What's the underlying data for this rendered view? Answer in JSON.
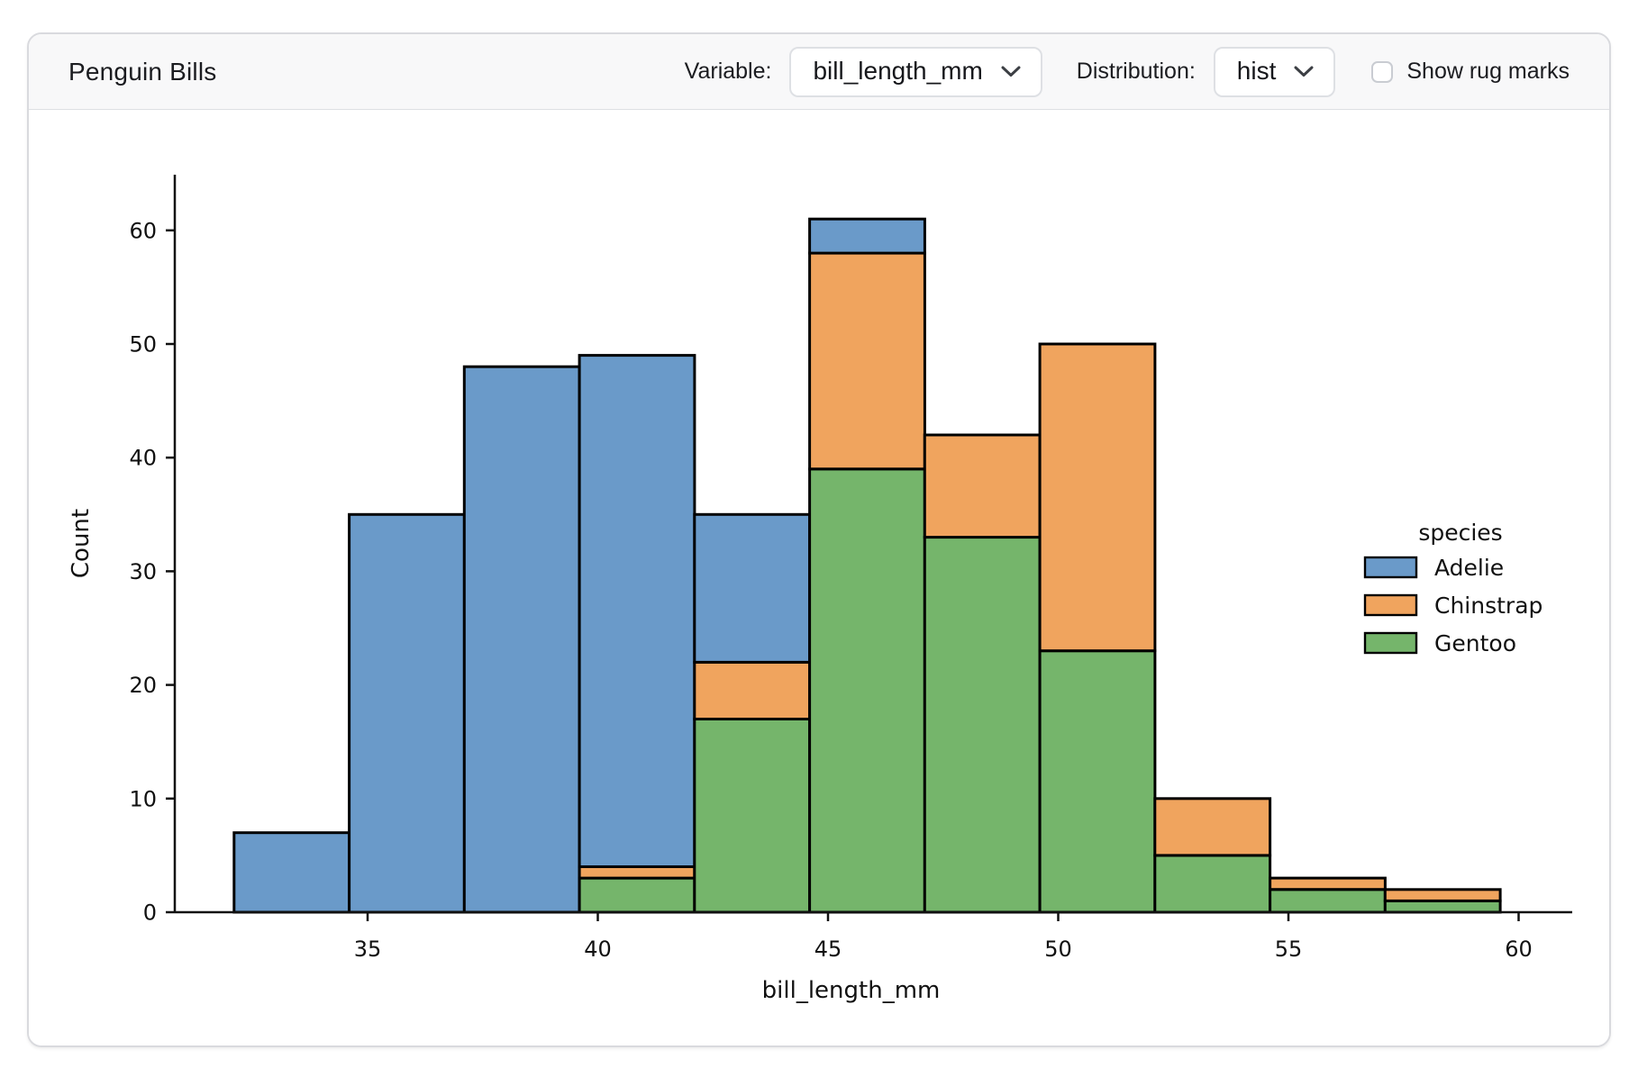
{
  "header": {
    "title": "Penguin Bills",
    "variable_label": "Variable:",
    "variable_value": "bill_length_mm",
    "variable_icon": "chevron-down-icon",
    "distribution_label": "Distribution:",
    "distribution_value": "hist",
    "distribution_icon": "chevron-down-icon",
    "rug_checkbox_label": "Show rug marks",
    "rug_checked": false
  },
  "chart_data": {
    "type": "bar",
    "subtype": "stacked-histogram",
    "title": "",
    "xlabel": "bill_length_mm",
    "ylabel": "Count",
    "bin_edges": [
      32.1,
      34.6,
      37.1,
      39.6,
      42.1,
      44.6,
      47.1,
      49.6,
      52.1,
      54.6,
      57.1,
      59.6
    ],
    "series": [
      {
        "name": "Adelie",
        "color": "#6a9ac9",
        "counts": [
          7,
          35,
          48,
          45,
          13,
          3,
          0,
          0,
          0,
          0,
          0
        ]
      },
      {
        "name": "Chinstrap",
        "color": "#f0a45e",
        "counts": [
          0,
          0,
          0,
          1,
          5,
          19,
          9,
          27,
          5,
          1,
          1
        ]
      },
      {
        "name": "Gentoo",
        "color": "#75b56b",
        "counts": [
          0,
          0,
          0,
          3,
          17,
          39,
          33,
          23,
          5,
          2,
          1
        ]
      }
    ],
    "stack_order_bottom_to_top": [
      "Gentoo",
      "Chinstrap",
      "Adelie"
    ],
    "bin_totals": [
      7,
      35,
      48,
      49,
      35,
      61,
      42,
      50,
      10,
      3,
      2
    ],
    "x_ticks": [
      35,
      40,
      45,
      50,
      55,
      60
    ],
    "y_ticks": [
      0,
      10,
      20,
      30,
      40,
      50,
      60
    ],
    "xlim": [
      30.8,
      61.2
    ],
    "ylim": [
      0,
      64.9
    ],
    "grid": false,
    "legend": {
      "title": "species",
      "entries": [
        "Adelie",
        "Chinstrap",
        "Gentoo"
      ],
      "position": "right"
    },
    "bar_edge_color": "#000000",
    "axis_color": "#111111"
  }
}
